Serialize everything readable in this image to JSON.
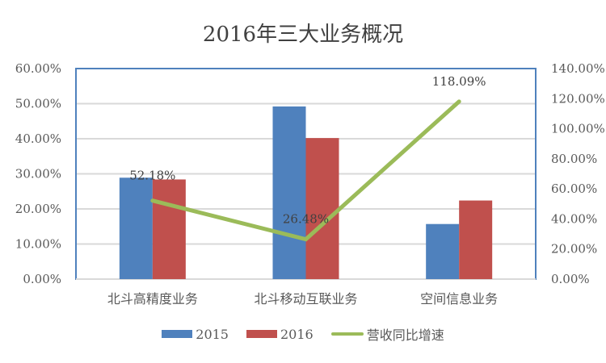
{
  "chart_data": {
    "type": "bar+line",
    "title": "2016年三大业务概况",
    "categories": [
      "北斗高精度业务",
      "北斗移动互联业务",
      "空间信息业务"
    ],
    "series": [
      {
        "name": "2015",
        "type": "bar",
        "axis": "left",
        "color": "#4F81BD",
        "values": [
          28.9,
          49.2,
          15.7
        ]
      },
      {
        "name": "2016",
        "type": "bar",
        "axis": "left",
        "color": "#C0504D",
        "values": [
          28.4,
          40.2,
          22.4
        ]
      },
      {
        "name": "营收同比增速",
        "type": "line",
        "axis": "right",
        "color": "#9BBB59",
        "values": [
          52.18,
          26.48,
          118.09
        ],
        "data_labels": [
          "52.18%",
          "26.48%",
          "118.09%"
        ]
      }
    ],
    "left_axis": {
      "ylim": [
        0,
        60
      ],
      "ticks": [
        "0.00%",
        "10.00%",
        "20.00%",
        "30.00%",
        "40.00%",
        "50.00%",
        "60.00%"
      ]
    },
    "right_axis": {
      "ylim": [
        0,
        140
      ],
      "ticks": [
        "0.00%",
        "20.00%",
        "40.00%",
        "60.00%",
        "80.00%",
        "100.00%",
        "120.00%",
        "140.00%"
      ]
    },
    "xlabel": "",
    "ylabel": "",
    "grid": true,
    "legend_position": "bottom"
  },
  "legend": {
    "items": [
      {
        "label": "2015",
        "color": "#4F81BD"
      },
      {
        "label": "2016",
        "color": "#C0504D"
      },
      {
        "label": "营收同比增速",
        "color": "#9BBB59"
      }
    ]
  }
}
